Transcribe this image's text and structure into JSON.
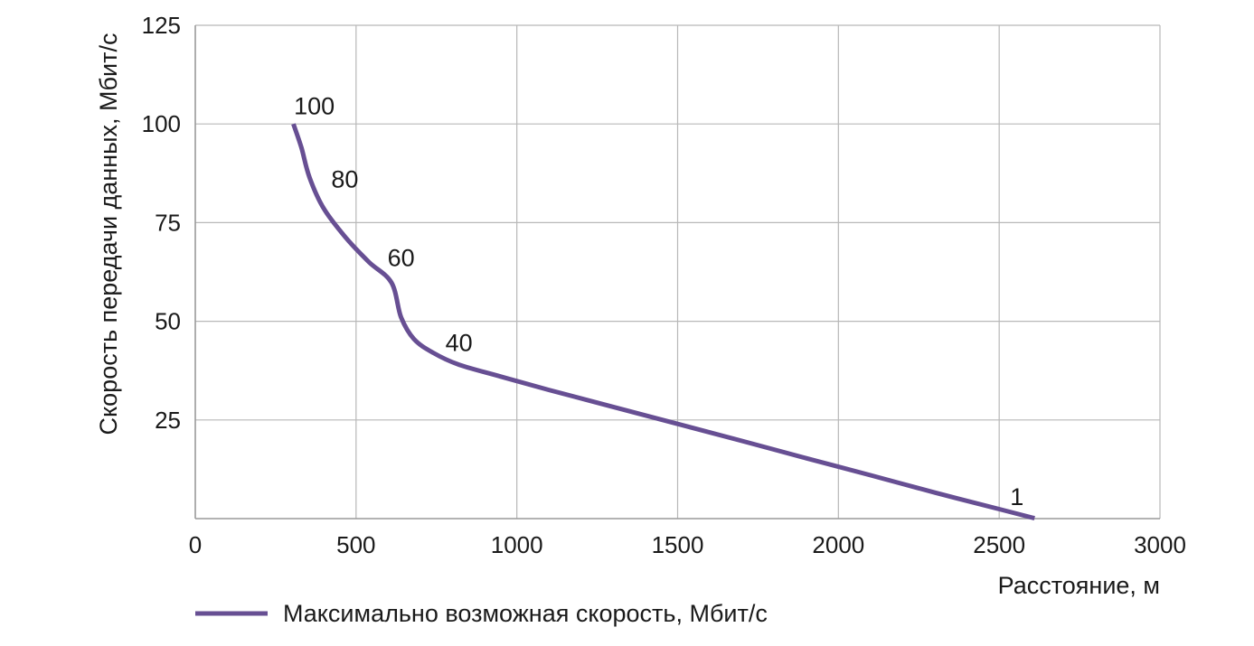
{
  "chart_data": {
    "type": "line",
    "title": "",
    "xlabel": "Расстояние, м",
    "ylabel": "Скорость  передачи данных, Мбит/с",
    "xlim": [
      0,
      3000
    ],
    "ylim": [
      0,
      125
    ],
    "x_ticks": [
      "0",
      "500",
      "1000",
      "1500",
      "2000",
      "2500",
      "3000"
    ],
    "y_ticks": [
      "25",
      "50",
      "75",
      "100",
      "125"
    ],
    "grid": true,
    "legend_position": "bottom-left",
    "series": [
      {
        "name": "Максимально возможная скорость, Мбит/с",
        "color": "#674f93",
        "x": [
          305,
          330,
          355,
          400,
          470,
          540,
          610,
          640,
          680,
          740,
          820,
          950,
          1100,
          1300,
          1500,
          1700,
          1900,
          2100,
          2300,
          2500,
          2610
        ],
        "y": [
          100,
          94,
          86.5,
          78.5,
          71,
          65,
          59.8,
          51,
          45.5,
          42,
          39,
          36,
          32.6,
          28.3,
          24,
          19.7,
          15.3,
          11,
          6.6,
          2.4,
          0.1
        ]
      }
    ],
    "annotations": [
      {
        "text": "100",
        "x": 370,
        "y": 104.5
      },
      {
        "text": "80",
        "x": 465,
        "y": 86
      },
      {
        "text": "60",
        "x": 640,
        "y": 66
      },
      {
        "text": "40",
        "x": 820,
        "y": 44.5
      },
      {
        "text": "1",
        "x": 2555,
        "y": 5.5
      }
    ]
  }
}
